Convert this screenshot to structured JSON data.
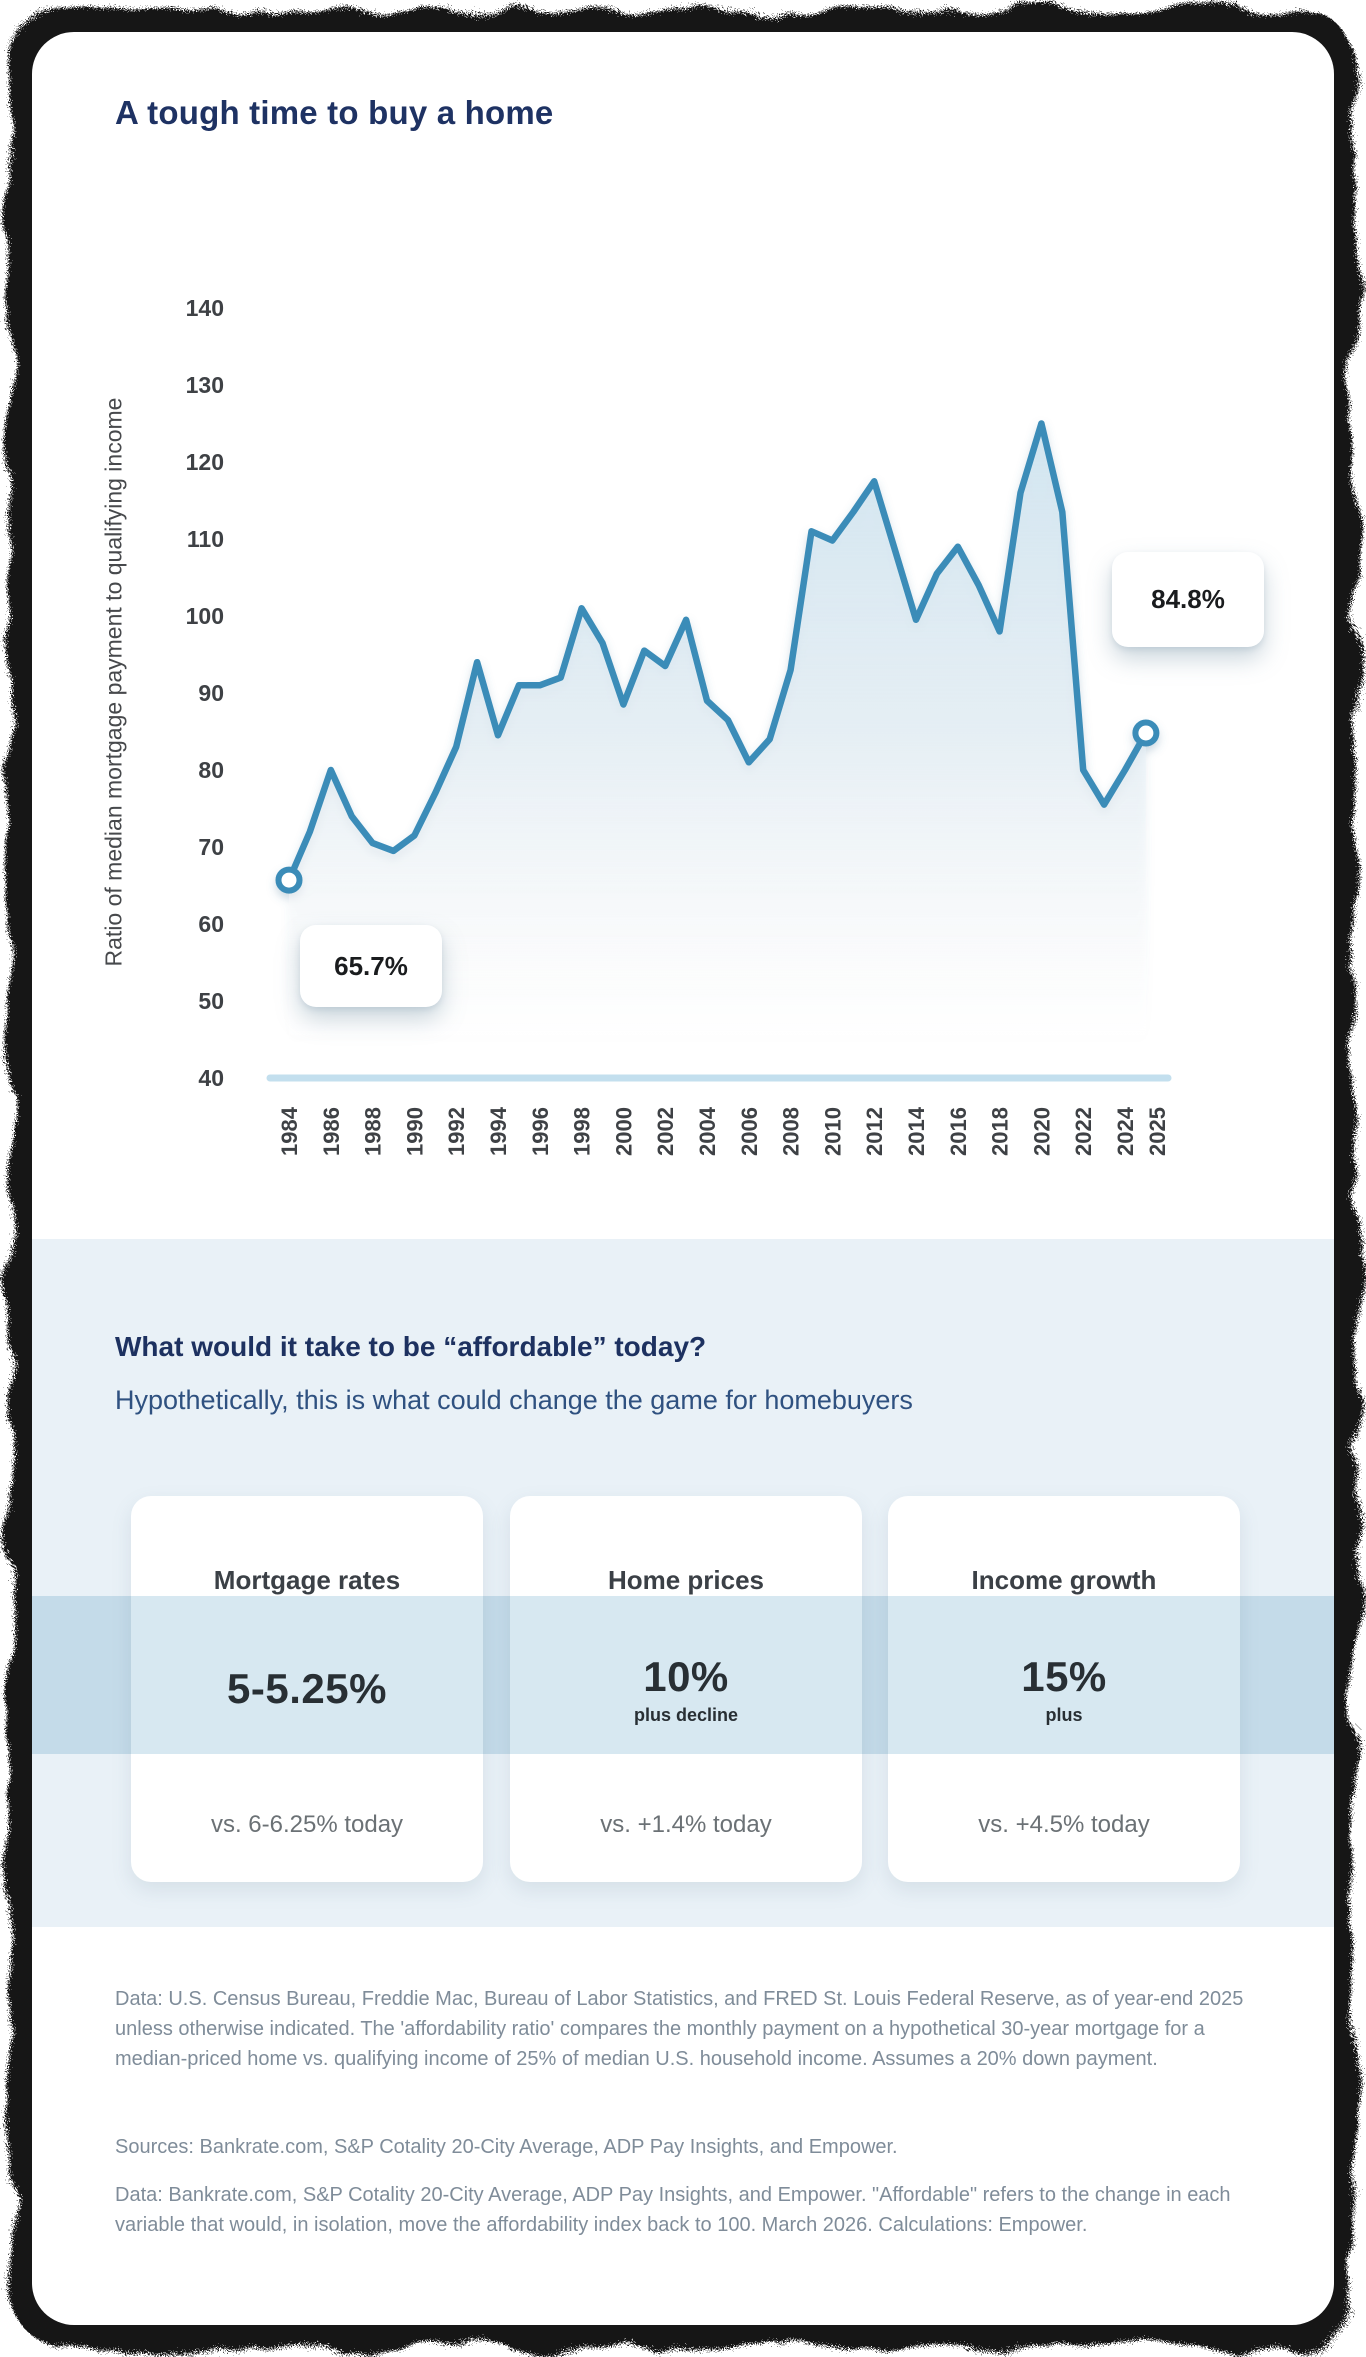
{
  "page": {
    "title": "A tough time to buy a home"
  },
  "chart_data": {
    "type": "area",
    "title": "A tough time to buy a home",
    "ylabel": "Ratio of median mortgage payment to qualifying income",
    "xlabel": "",
    "ylim": [
      40,
      140
    ],
    "grid": "off",
    "x": [
      1984,
      1985,
      1986,
      1987,
      1988,
      1989,
      1990,
      1991,
      1992,
      1993,
      1994,
      1995,
      1996,
      1997,
      1998,
      1999,
      2000,
      2001,
      2002,
      2003,
      2004,
      2005,
      2006,
      2007,
      2008,
      2009,
      2010,
      2011,
      2012,
      2013,
      2014,
      2015,
      2016,
      2017,
      2018,
      2019,
      2020,
      2021,
      2022,
      2023,
      2024,
      2025
    ],
    "values": [
      65.7,
      72,
      80,
      74,
      70.5,
      69.5,
      71.5,
      77,
      83,
      94,
      84.5,
      91,
      91,
      92,
      101,
      96.5,
      88.5,
      95.5,
      93.5,
      99.5,
      89,
      86.5,
      81,
      84,
      93,
      111,
      109.8,
      113.5,
      117.5,
      108.5,
      99.5,
      105.5,
      109,
      104,
      98,
      116,
      125,
      113.5,
      80,
      75.5,
      80,
      84.8
    ],
    "yticks": [
      140,
      130,
      120,
      110,
      100,
      90,
      80,
      70,
      60,
      50,
      40
    ],
    "xticks": [
      "1984",
      "1986",
      "1988",
      "1990",
      "1992",
      "1994",
      "1996",
      "1998",
      "2000",
      "2002",
      "2004",
      "2006",
      "2008",
      "2010",
      "2012",
      "2014",
      "2016",
      "2018",
      "2020",
      "2022",
      "2024",
      "2025"
    ],
    "start_label": "65.7%",
    "end_label": "84.8%",
    "line_color": "#3a8cb8",
    "baseline_color": "#c3dfee",
    "fill_top_color": "#cbe3f0"
  },
  "affordable": {
    "heading": "What would it take to be “affordable” today?",
    "subheading": "Hypothetically, this is what could change the game for homebuyers",
    "cards": [
      {
        "title": "Mortgage rates",
        "value": "5-5.25%",
        "value_note": "",
        "today": "vs. 6-6.25% today"
      },
      {
        "title": "Home prices",
        "value": "10%",
        "value_note": "plus decline",
        "today": "vs. +1.4% today"
      },
      {
        "title": "Income growth",
        "value": "15%",
        "value_note": "plus",
        "today": "vs. +4.5% today"
      }
    ]
  },
  "footnotes": [
    "Data: U.S. Census Bureau, Freddie Mac, Bureau of Labor Statistics, and FRED St. Louis Federal Reserve, as of year-end 2025 unless otherwise indicated. The 'affordability ratio' compares the monthly payment on a hypothetical 30-year mortgage for a median-priced home vs. qualifying income of 25% of median U.S. household income. Assumes a 20% down payment.",
    "Sources: Bankrate.com, S&P Cotality 20-City Average, ADP Pay Insights, and Empower.",
    "Data: Bankrate.com, S&P Cotality 20-City Average, ADP Pay Insights, and Empower. \"Affordable\" refers to the change in each variable that would, in isolation, move the affordability index back to 100. March 2026. Calculations: Empower."
  ]
}
